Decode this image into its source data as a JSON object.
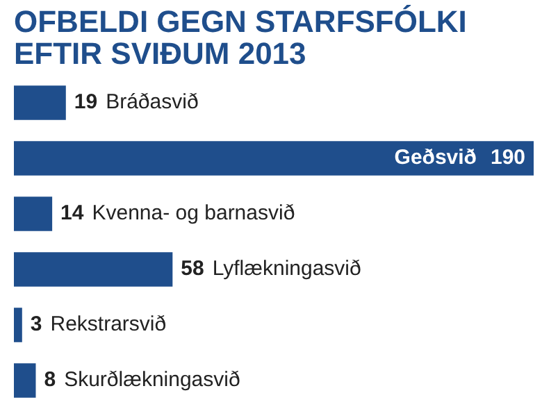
{
  "chart_data": {
    "type": "bar",
    "orientation": "horizontal",
    "title": "OFBELDI GEGN STARFSFÓLKI EFTIR SVIÐUM 2013",
    "categories": [
      "Bráðasvið",
      "Geðsvið",
      "Kvenna- og barnasvið",
      "Lyflækningasvið",
      "Rekstrarsvið",
      "Skurðlækningasvið"
    ],
    "values": [
      19,
      190,
      14,
      58,
      3,
      8
    ],
    "color": "#1f4e8c",
    "data_labels": true
  }
}
